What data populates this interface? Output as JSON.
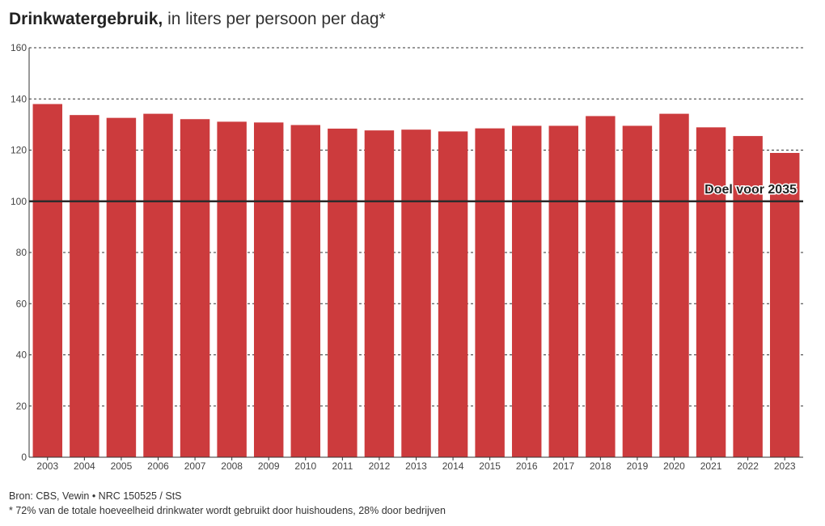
{
  "header": {
    "title_bold": "Drinkwatergebruik,",
    "title_rest": " in liters per persoon per dag*"
  },
  "footer": {
    "source": "Bron: CBS, Vewin • NRC 150525 / StS",
    "footnote": "* 72% van de totale hoeveelheid drinkwater wordt gebruikt door huishoudens, 28% door bedrijven"
  },
  "chart_data": {
    "type": "bar",
    "title": "Drinkwatergebruik, in liters per persoon per dag*",
    "xlabel": "",
    "ylabel": "",
    "categories": [
      "2003",
      "2004",
      "2005",
      "2006",
      "2007",
      "2008",
      "2009",
      "2010",
      "2011",
      "2012",
      "2013",
      "2014",
      "2015",
      "2016",
      "2017",
      "2018",
      "2019",
      "2020",
      "2021",
      "2022",
      "2023"
    ],
    "values": [
      138,
      133.7,
      132.6,
      134.2,
      132.1,
      131.1,
      130.8,
      129.8,
      128.4,
      127.7,
      128,
      127.3,
      128.5,
      129.5,
      129.5,
      133.3,
      129.5,
      134.2,
      128.9,
      125.5,
      118.9
    ],
    "ylim": [
      0,
      160
    ],
    "yticks": [
      0,
      20,
      40,
      60,
      80,
      100,
      120,
      140,
      160
    ],
    "grid": true,
    "bar_color": "#cc3b3d",
    "target": {
      "value": 100,
      "label": "Doel voor 2035",
      "color": "#2b2b2b"
    }
  }
}
